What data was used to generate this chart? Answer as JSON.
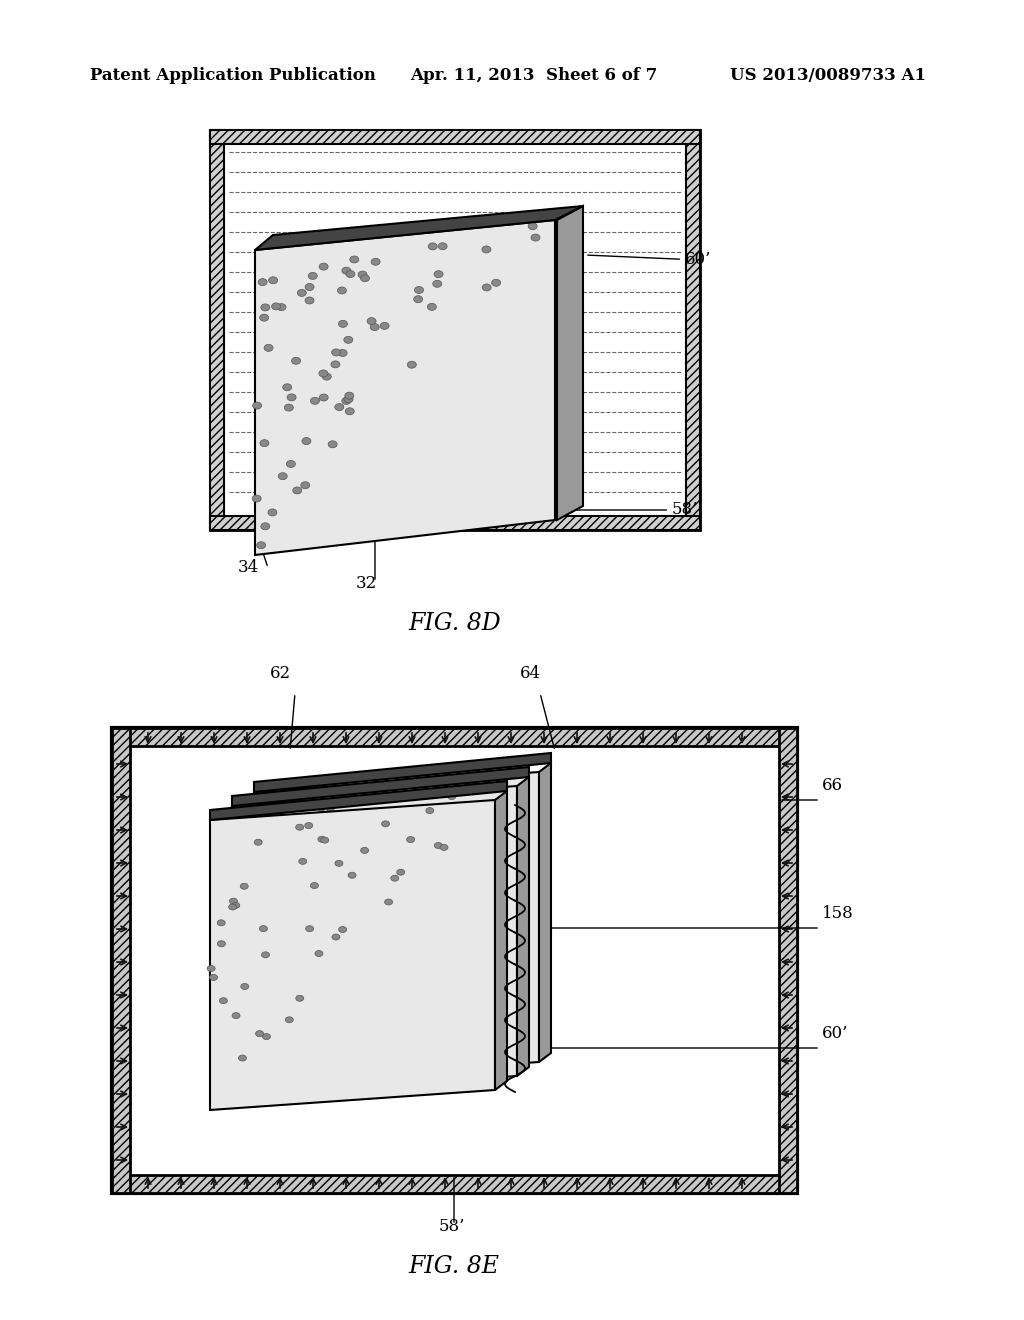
{
  "header_left": "Patent Application Publication",
  "header_mid": "Apr. 11, 2013  Sheet 6 of 7",
  "header_right": "US 2013/0089733 A1",
  "fig8d_label": "FIG. 8D",
  "fig8e_label": "FIG. 8E",
  "label_34": "34",
  "label_32": "32",
  "label_58a": "58’",
  "label_60a": "60’",
  "label_62": "62",
  "label_64": "64",
  "label_66": "66",
  "label_158": "158",
  "label_60b": "60’",
  "label_58b": "58’",
  "bg_color": "#ffffff",
  "line_color": "#000000",
  "hatch_color": "#555555",
  "stipple_color": "#aaaaaa"
}
